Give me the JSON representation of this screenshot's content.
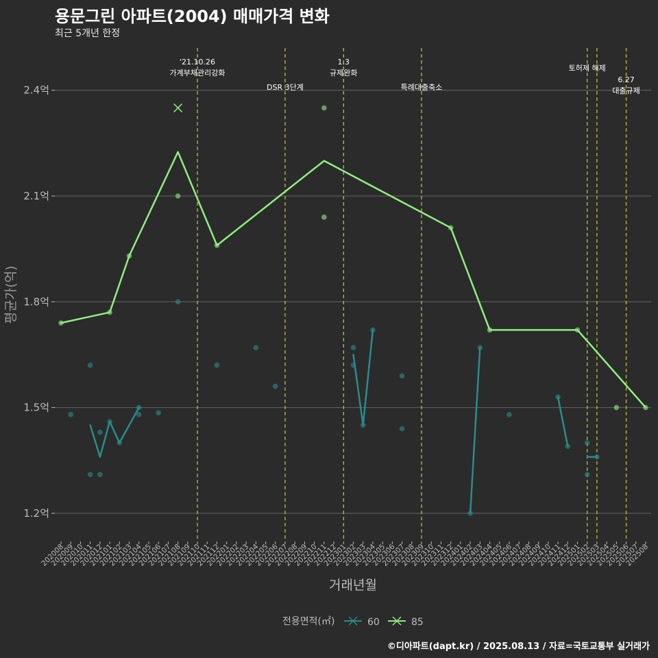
{
  "title": "용문그린 아파트(2004) 매매가격 변화",
  "subtitle": "최근 5개년 한정",
  "caption": "©디아파트(dapt.kr) / 2025.08.13 / 자료=국토교통부 실거래가",
  "colors": {
    "background": "#2b2b2b",
    "grid": "#666666",
    "series60": "#2a8c8c",
    "series85": "#90ee80",
    "event_line": "#cccc33",
    "text": "#ffffff",
    "axis_text": "#bdbdbd"
  },
  "chart_data": {
    "type": "line",
    "title": "용문그린 아파트(2004) 매매가격 변화",
    "xlabel": "거래년월",
    "ylabel": "평균가(억)",
    "ylim": [
      1.12,
      2.52
    ],
    "yticks": [
      1.2,
      1.5,
      1.8,
      2.1,
      2.4
    ],
    "ytick_labels": [
      "1.2억",
      "1.5억",
      "1.8억",
      "2.1억",
      "2.4억"
    ],
    "x_categories": [
      "202008",
      "202009",
      "202010",
      "202011",
      "202012",
      "202101",
      "202102",
      "202103",
      "202104",
      "202105",
      "202106",
      "202107",
      "202108",
      "202109",
      "202110",
      "202111",
      "202112",
      "202201",
      "202202",
      "202203",
      "202204",
      "202205",
      "202206",
      "202207",
      "202208",
      "202209",
      "202210",
      "202211",
      "202212",
      "202301",
      "202302",
      "202303",
      "202304",
      "202305",
      "202306",
      "202307",
      "202308",
      "202309",
      "202310",
      "202311",
      "202312",
      "202401",
      "202402",
      "202403",
      "202404",
      "202405",
      "202406",
      "202407",
      "202408",
      "202409",
      "202410",
      "202411",
      "202412",
      "202501",
      "202502",
      "202503",
      "202504",
      "202505",
      "202506",
      "202507",
      "202508"
    ],
    "legend_title": "전용면적(㎡)",
    "series": [
      {
        "name": "60",
        "color": "#2a8c8c",
        "segments": [
          [
            [
              "202011",
              1.45
            ],
            [
              "202012",
              1.36
            ],
            [
              "202101",
              1.46
            ],
            [
              "202102",
              1.4
            ],
            [
              "202104",
              1.5
            ]
          ],
          [
            [
              "202302",
              1.65
            ],
            [
              "202303",
              1.45
            ],
            [
              "202304",
              1.72
            ]
          ],
          [
            [
              "202402",
              1.2
            ],
            [
              "202403",
              1.67
            ]
          ],
          [
            [
              "202411",
              1.53
            ],
            [
              "202412",
              1.39
            ]
          ],
          [
            [
              "202502",
              1.36
            ],
            [
              "202503",
              1.36
            ]
          ]
        ],
        "points": [
          [
            "202009",
            1.48
          ],
          [
            "202011",
            1.62
          ],
          [
            "202011",
            1.31
          ],
          [
            "202012",
            1.43
          ],
          [
            "202012",
            1.31
          ],
          [
            "202101",
            1.46
          ],
          [
            "202102",
            1.4
          ],
          [
            "202104",
            1.48
          ],
          [
            "202104",
            1.5
          ],
          [
            "202106",
            1.485
          ],
          [
            "202108",
            1.8
          ],
          [
            "202204",
            1.67
          ],
          [
            "202206",
            1.56
          ],
          [
            "202112",
            1.62
          ],
          [
            "202302",
            1.67
          ],
          [
            "202302",
            1.62
          ],
          [
            "202303",
            1.45
          ],
          [
            "202304",
            1.72
          ],
          [
            "202307",
            1.59
          ],
          [
            "202307",
            1.44
          ],
          [
            "202402",
            1.2
          ],
          [
            "202403",
            1.67
          ],
          [
            "202406",
            1.48
          ],
          [
            "202411",
            1.53
          ],
          [
            "202412",
            1.39
          ],
          [
            "202502",
            1.4
          ],
          [
            "202502",
            1.31
          ],
          [
            "202503",
            1.36
          ]
        ]
      },
      {
        "name": "85",
        "color": "#90ee80",
        "segments": [
          [
            [
              "202008",
              1.74
            ],
            [
              "202101",
              1.77
            ],
            [
              "202103",
              1.93
            ],
            [
              "202108",
              2.225
            ],
            [
              "202112",
              1.96
            ],
            [
              "202211",
              2.2
            ],
            [
              "202312",
              2.01
            ],
            [
              "202404",
              1.72
            ],
            [
              "202501",
              1.72
            ],
            [
              "202508",
              1.5
            ]
          ]
        ],
        "points": [
          [
            "202008",
            1.74
          ],
          [
            "202101",
            1.77
          ],
          [
            "202103",
            1.93
          ],
          [
            "202108",
            2.1
          ],
          [
            "202112",
            1.96
          ],
          [
            "202211",
            2.04
          ],
          [
            "202211",
            2.35
          ],
          [
            "202312",
            2.01
          ],
          [
            "202404",
            1.72
          ],
          [
            "202501",
            1.72
          ],
          [
            "202505",
            1.5
          ],
          [
            "202508",
            1.5
          ]
        ],
        "x_markers": [
          [
            "202108",
            2.35
          ]
        ]
      }
    ],
    "events": [
      {
        "date": "202110",
        "lines": [
          "'21.10.26",
          "가계부채관리강화"
        ],
        "label_row": "top"
      },
      {
        "date": "202207",
        "lines": [
          "DSR 3단계"
        ],
        "label_row": "mid"
      },
      {
        "date": "202301",
        "lines": [
          "1.3",
          "규제완화"
        ],
        "label_row": "top"
      },
      {
        "date": "202309",
        "lines": [
          "특례대출축소"
        ],
        "label_row": "mid"
      },
      {
        "date": "202502",
        "lines": [
          "토허제 해제"
        ],
        "label_row": "top"
      },
      {
        "date": "202503",
        "lines": [],
        "label_row": "none"
      },
      {
        "date": "202506",
        "lines": [
          "6.27",
          "대출규제"
        ],
        "label_row": "low"
      }
    ]
  }
}
